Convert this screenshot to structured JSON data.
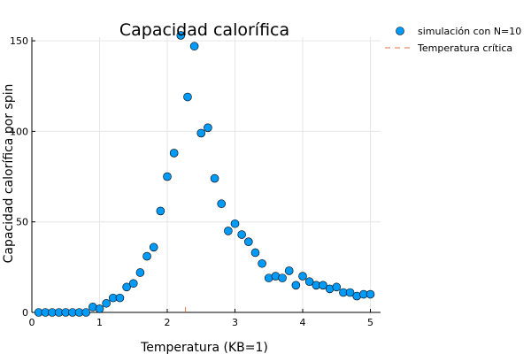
{
  "chart_data": {
    "type": "scatter",
    "title": "Capacidad calorífica",
    "xlabel": "Temperatura (KB=1)",
    "ylabel": "Capacidad calorífica por spin",
    "xlim": [
      0,
      5.15
    ],
    "ylim": [
      0,
      152
    ],
    "xticks": [
      0,
      1,
      2,
      3,
      4,
      5
    ],
    "yticks": [
      0,
      50,
      100,
      150
    ],
    "xtick_labels": [
      "0",
      "1",
      "2",
      "3",
      "4",
      "5"
    ],
    "ytick_labels": [
      "0",
      "50",
      "100",
      "150"
    ],
    "grid": true,
    "legend_position": "top-right (outside plot)",
    "series": [
      {
        "name": "simulación con N=10",
        "type": "scatter",
        "color": "#009af9",
        "x": [
          0.1,
          0.2,
          0.3,
          0.4,
          0.5,
          0.6,
          0.7,
          0.8,
          0.9,
          1.0,
          1.1,
          1.2,
          1.3,
          1.4,
          1.5,
          1.6,
          1.7,
          1.8,
          1.9,
          2.0,
          2.1,
          2.2,
          2.3,
          2.4,
          2.5,
          2.6,
          2.7,
          2.8,
          2.9,
          3.0,
          3.1,
          3.2,
          3.3,
          3.4,
          3.5,
          3.6,
          3.7,
          3.8,
          3.9,
          4.0,
          4.1,
          4.2,
          4.3,
          4.4,
          4.5,
          4.6,
          4.7,
          4.8,
          4.9,
          5.0
        ],
        "y": [
          0,
          0,
          0,
          0,
          0,
          0,
          0,
          0,
          3,
          2,
          5,
          8,
          8,
          14,
          16,
          22,
          31,
          36,
          56,
          75,
          88,
          153,
          119,
          147,
          99,
          102,
          74,
          60,
          45,
          49,
          43,
          39,
          33,
          27,
          19,
          20,
          19,
          23,
          15,
          20,
          17,
          15,
          15,
          13,
          14,
          11,
          11,
          9,
          10,
          10
        ]
      },
      {
        "name": "Temperatura crítica",
        "type": "line",
        "color": "#e26f46",
        "style": "dashed",
        "x": [
          2.269,
          2.269
        ],
        "y": [
          0,
          1.5
        ]
      }
    ]
  }
}
